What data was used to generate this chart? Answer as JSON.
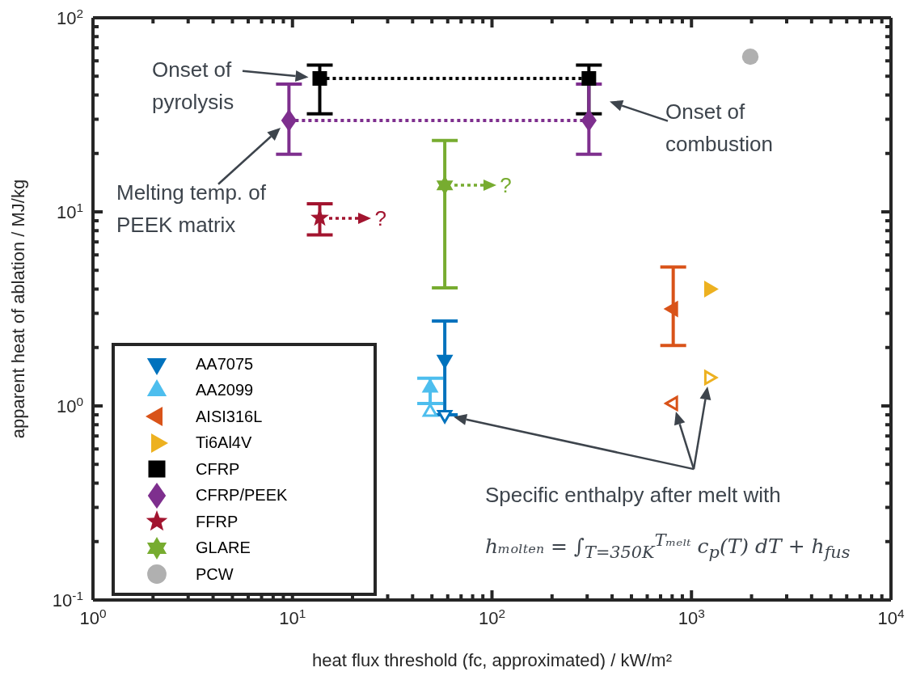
{
  "chart_data": {
    "type": "scatter",
    "xlabel": "heat flux threshold (fc, approximated) / kW/m²",
    "ylabel": "apparent heat of ablation / MJ/kg",
    "log": "xy",
    "legend": "bottom left",
    "xlim": [
      1,
      10000
    ],
    "ylim": [
      0.1,
      100
    ],
    "xticks": [
      {
        "value": 1,
        "label": "10$^{0}$"
      },
      {
        "value": 2,
        "label": null
      },
      {
        "value": 3,
        "label": null
      },
      {
        "value": 4,
        "label": null
      },
      {
        "value": 5,
        "label": null
      },
      {
        "value": 6,
        "label": null
      },
      {
        "value": 7,
        "label": null
      },
      {
        "value": 8,
        "label": null
      },
      {
        "value": 9,
        "label": null
      },
      {
        "value": 10,
        "label": "10$^{1}$"
      },
      {
        "value": 20,
        "label": null
      },
      {
        "value": 30,
        "label": null
      },
      {
        "value": 40,
        "label": null
      },
      {
        "value": 50,
        "label": null
      },
      {
        "value": 60,
        "label": null
      },
      {
        "value": 70,
        "label": null
      },
      {
        "value": 80,
        "label": null
      },
      {
        "value": 90,
        "label": null
      },
      {
        "value": 100,
        "label": "10$^{2}$"
      },
      {
        "value": 200,
        "label": null
      },
      {
        "value": 300,
        "label": null
      },
      {
        "value": 400,
        "label": null
      },
      {
        "value": 500,
        "label": null
      },
      {
        "value": 600,
        "label": null
      },
      {
        "value": 700,
        "label": null
      },
      {
        "value": 800,
        "label": null
      },
      {
        "value": 900,
        "label": null
      },
      {
        "value": 1000,
        "label": "10$^{3}$"
      },
      {
        "value": 2000,
        "label": null
      },
      {
        "value": 3000,
        "label": null
      },
      {
        "value": 4000,
        "label": null
      },
      {
        "value": 5000,
        "label": null
      },
      {
        "value": 6000,
        "label": null
      },
      {
        "value": 7000,
        "label": null
      },
      {
        "value": 8000,
        "label": null
      },
      {
        "value": 9000,
        "label": null
      },
      {
        "value": 10000,
        "label": "10$^{4}$"
      }
    ],
    "yticks": [
      {
        "value": 0.1,
        "label": "10$^{-1}$"
      },
      {
        "value": 0.2,
        "label": null
      },
      {
        "value": 0.3,
        "label": null
      },
      {
        "value": 0.4,
        "label": null
      },
      {
        "value": 0.5,
        "label": null
      },
      {
        "value": 0.6,
        "label": null
      },
      {
        "value": 0.7,
        "label": null
      },
      {
        "value": 0.8,
        "label": null
      },
      {
        "value": 0.9,
        "label": null
      },
      {
        "value": 1,
        "label": "10$^{0}$"
      },
      {
        "value": 2,
        "label": null
      },
      {
        "value": 3,
        "label": null
      },
      {
        "value": 4,
        "label": null
      },
      {
        "value": 5,
        "label": null
      },
      {
        "value": 6,
        "label": null
      },
      {
        "value": 7,
        "label": null
      },
      {
        "value": 8,
        "label": null
      },
      {
        "value": 9,
        "label": null
      },
      {
        "value": 10,
        "label": "10$^{1}$"
      },
      {
        "value": 20,
        "label": null
      },
      {
        "value": 30,
        "label": null
      },
      {
        "value": 40,
        "label": null
      },
      {
        "value": 50,
        "label": null
      },
      {
        "value": 60,
        "label": null
      },
      {
        "value": 70,
        "label": null
      },
      {
        "value": 80,
        "label": null
      },
      {
        "value": 90,
        "label": null
      },
      {
        "value": 100,
        "label": "10$^{2}$"
      }
    ],
    "series": [
      {
        "name": "AA7075",
        "color": "#0072bd",
        "marker": "triangle-down",
        "x": [
          58
        ],
        "values": [
          1.73
        ],
        "errors": [
          [
            0.9,
            2.74
          ]
        ]
      },
      {
        "name": "AA2099",
        "color": "#4dbeee",
        "marker": "triangle",
        "x": [
          49
        ],
        "values": [
          1.24
        ],
        "errors": [
          [
            1.03,
            1.39
          ]
        ]
      },
      {
        "name": "AISI316L",
        "color": "#d95319",
        "marker": "triangle-left",
        "x": [
          810
        ],
        "values": [
          3.16
        ],
        "errors": [
          [
            2.05,
            5.2
          ]
        ]
      },
      {
        "name": "Ti6Al4V",
        "color": "#edb120",
        "marker": "triangle-right",
        "x": [
          1224
        ],
        "values": [
          4.0
        ]
      },
      {
        "name": "CFRP",
        "type": "line",
        "color": "#000000",
        "marker": "square",
        "line_style": "dotted",
        "x": [
          13.7,
          306
        ],
        "values": [
          48.7,
          48.7
        ],
        "errors": [
          [
            32,
            57
          ],
          [
            32,
            57
          ]
        ]
      },
      {
        "name": "CFRP/PEEK",
        "type": "line",
        "color": "#7e2f8e",
        "marker": "diamond",
        "line_style": "dotted",
        "x": [
          9.6,
          306
        ],
        "values": [
          29.6,
          29.6
        ],
        "errors": [
          [
            19.8,
            45.5
          ],
          [
            19.8,
            45.5
          ]
        ]
      },
      {
        "name": "FFRP",
        "color": "#a2142f",
        "marker": "star",
        "x": [
          13.7
        ],
        "values": [
          9.3
        ],
        "errors": [
          [
            7.6,
            11
          ]
        ]
      },
      {
        "name": "GLARE",
        "color": "#77ac30",
        "marker": "cross",
        "x": [
          58
        ],
        "values": [
          13.7
        ],
        "errors": [
          [
            4.06,
            23.3
          ]
        ]
      },
      {
        "name": "PCW",
        "color": "#b0b0b0",
        "marker": "circle",
        "x": [
          1972
        ],
        "values": [
          63
        ]
      },
      {
        "color": "#0072bd",
        "marker": "triangle-down-open",
        "x": [
          58
        ],
        "values": [
          0.9
        ]
      },
      {
        "color": "#4dbeee",
        "marker": "triangle-open",
        "x": [
          49
        ],
        "values": [
          0.93
        ]
      },
      {
        "color": "#d95319",
        "marker": "triangle-left-open",
        "x": [
          810
        ],
        "values": [
          1.03
        ]
      },
      {
        "color": "#edb120",
        "marker": "triangle-right-open",
        "x": [
          1224
        ],
        "values": [
          1.4
        ]
      }
    ],
    "annotations": [
      "Onset of pyrolysis",
      "Onset of combustion",
      "Melting temp. of PEEK matrix",
      "?",
      "?",
      "Specific enthalpy after melt with",
      "hₘₒₗₜₑₙ = ∫$_{T=350K}$$^{Tₘₑₗₜ}$ c$_{p}$(T) dT + h$_{fus}$"
    ]
  }
}
